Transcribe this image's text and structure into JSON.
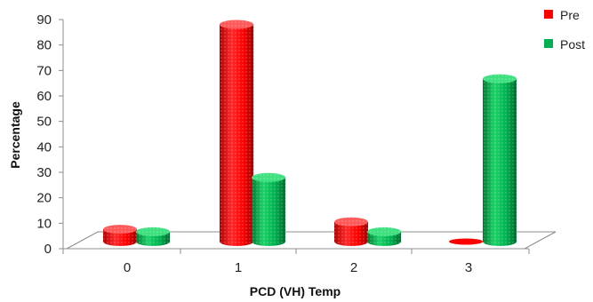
{
  "chart_data": {
    "type": "bar",
    "categories": [
      "0",
      "1",
      "2",
      "3"
    ],
    "series": [
      {
        "name": "Pre",
        "values": [
          5,
          88,
          8,
          0
        ],
        "color": "#ff0000"
      },
      {
        "name": "Post",
        "values": [
          4,
          26,
          4,
          66
        ],
        "color": "#00b050"
      }
    ],
    "xlabel": "PCD (VH) Temp",
    "ylabel": "Percentage",
    "ylim": [
      0,
      90
    ],
    "yticks": [
      "0",
      "10",
      "20",
      "30",
      "40",
      "50",
      "60",
      "70",
      "80",
      "90"
    ],
    "grid": false,
    "legend_position": "top-right"
  }
}
